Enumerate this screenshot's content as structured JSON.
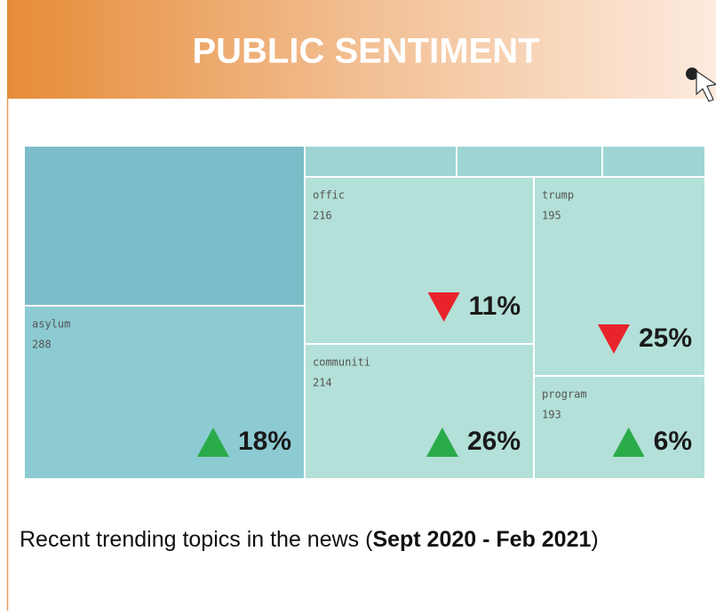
{
  "chart_data": {
    "type": "treemap",
    "title": "PUBLIC SENTIMENT",
    "categories": [
      "asylum",
      "offic",
      "communiti",
      "trump",
      "program"
    ],
    "values": [
      288,
      216,
      214,
      195,
      193
    ],
    "changes": [
      18,
      11,
      26,
      25,
      6
    ],
    "change_labels": [
      "18%",
      "11%",
      "26%",
      "25%",
      "6%"
    ],
    "directions": [
      "up",
      "down",
      "up",
      "down",
      "up"
    ],
    "colors": [
      "#8ccbd2",
      "#b3e0d8",
      "#b3e0d8",
      "#b3e0d8",
      "#b3e0d8"
    ],
    "up_color": "#2aab4a",
    "down_color": "#e8242a",
    "caption": [
      "Recent trending topics in the news (",
      "Sept 2020 - Feb 2021",
      ")"
    ]
  }
}
